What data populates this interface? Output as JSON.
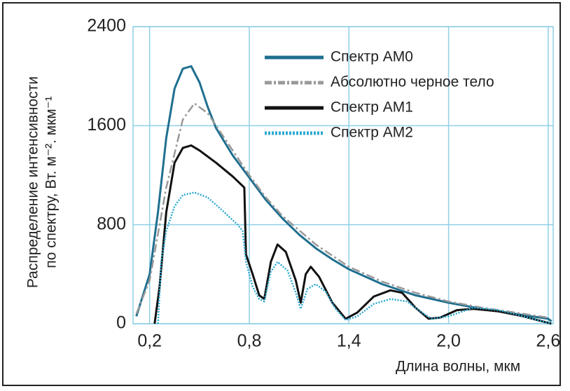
{
  "chart_data": {
    "type": "line",
    "ylabel": [
      "Распределение интенсивности",
      "по спектру, Вт. м⁻². мкм⁻¹"
    ],
    "xlabel": "Длина волны, мкм",
    "xlim": [
      0.1,
      2.63
    ],
    "ylim": [
      0,
      2400
    ],
    "xticks": [
      {
        "value": 0.2,
        "label": "0,2"
      },
      {
        "value": 0.8,
        "label": "0,8"
      },
      {
        "value": 1.4,
        "label": "1,4"
      },
      {
        "value": 2.0,
        "label": "2,0"
      },
      {
        "value": 2.6,
        "label": "2,6"
      }
    ],
    "yticks": [
      0,
      800,
      1600,
      2400
    ],
    "grid": true,
    "series": [
      {
        "name": "Спектр АМ0",
        "color": "#1f6f8f",
        "style": "solid",
        "x": [
          0.12,
          0.2,
          0.25,
          0.3,
          0.35,
          0.4,
          0.45,
          0.5,
          0.55,
          0.6,
          0.7,
          0.8,
          0.9,
          1.0,
          1.1,
          1.2,
          1.3,
          1.4,
          1.6,
          1.8,
          2.0,
          2.2,
          2.4,
          2.6,
          2.62
        ],
        "values": [
          60,
          400,
          900,
          1500,
          1900,
          2060,
          2080,
          1950,
          1750,
          1580,
          1360,
          1180,
          1000,
          850,
          720,
          610,
          520,
          440,
          320,
          230,
          170,
          120,
          80,
          40,
          20
        ]
      },
      {
        "name": "Абсолютно черное тело",
        "color": "#999999",
        "style": "dashdot",
        "x": [
          0.12,
          0.2,
          0.3,
          0.4,
          0.47,
          0.55,
          0.6,
          0.7,
          0.8,
          0.9,
          1.0,
          1.2,
          1.4,
          1.6,
          1.8,
          2.0,
          2.2,
          2.4,
          2.6
        ],
        "values": [
          80,
          350,
          1100,
          1650,
          1780,
          1700,
          1600,
          1400,
          1200,
          1020,
          870,
          640,
          460,
          340,
          250,
          180,
          130,
          90,
          50
        ]
      },
      {
        "name": "Спектр АМ1",
        "color": "#111111",
        "style": "solid",
        "x": [
          0.23,
          0.26,
          0.3,
          0.35,
          0.4,
          0.45,
          0.5,
          0.6,
          0.7,
          0.77,
          0.78,
          0.82,
          0.86,
          0.89,
          0.93,
          0.97,
          1.02,
          1.08,
          1.11,
          1.14,
          1.17,
          1.22,
          1.3,
          1.38,
          1.45,
          1.55,
          1.65,
          1.72,
          1.8,
          1.88,
          1.95,
          2.05,
          2.15,
          2.3,
          2.45,
          2.62
        ],
        "values": [
          0,
          300,
          900,
          1300,
          1420,
          1440,
          1400,
          1300,
          1190,
          1100,
          560,
          400,
          230,
          200,
          500,
          640,
          580,
          350,
          170,
          400,
          460,
          380,
          170,
          40,
          90,
          220,
          270,
          250,
          130,
          40,
          50,
          110,
          120,
          100,
          60,
          0
        ]
      },
      {
        "name": "Спектр АМ2",
        "color": "#2aa8d0",
        "style": "dotted",
        "x": [
          0.25,
          0.27,
          0.3,
          0.35,
          0.4,
          0.47,
          0.55,
          0.65,
          0.73,
          0.76,
          0.78,
          0.82,
          0.86,
          0.89,
          0.93,
          0.97,
          1.03,
          1.08,
          1.11,
          1.15,
          1.2,
          1.26,
          1.32,
          1.38,
          1.45,
          1.55,
          1.65,
          1.75,
          1.85,
          1.9,
          2.0,
          2.15,
          2.3,
          2.45,
          2.62
        ],
        "values": [
          0,
          500,
          750,
          950,
          1040,
          1060,
          1020,
          900,
          800,
          750,
          500,
          300,
          200,
          180,
          420,
          500,
          430,
          250,
          120,
          280,
          320,
          260,
          120,
          30,
          60,
          160,
          200,
          180,
          80,
          40,
          60,
          130,
          110,
          60,
          0
        ]
      }
    ]
  }
}
